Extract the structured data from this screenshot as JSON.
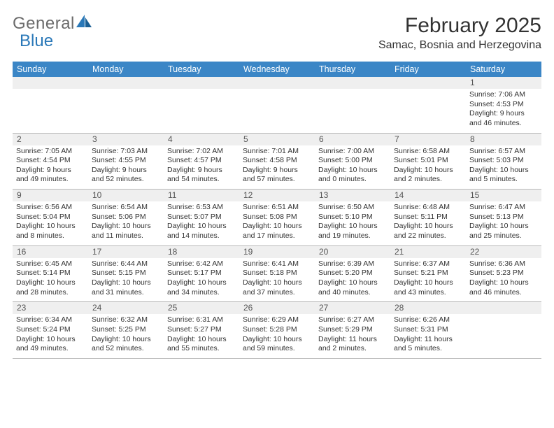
{
  "logo": {
    "word1": "General",
    "word2": "Blue"
  },
  "title": "February 2025",
  "location": "Samac, Bosnia and Herzegovina",
  "colors": {
    "header_bar": "#3b86c6",
    "header_text": "#ffffff",
    "stripe_bg": "#efefef",
    "body_text": "#333333",
    "logo_gray": "#6b6b6b",
    "logo_blue": "#2a78b8"
  },
  "days_of_week": [
    "Sunday",
    "Monday",
    "Tuesday",
    "Wednesday",
    "Thursday",
    "Friday",
    "Saturday"
  ],
  "weeks": [
    {
      "nums": [
        "",
        "",
        "",
        "",
        "",
        "",
        "1"
      ],
      "cells": [
        null,
        null,
        null,
        null,
        null,
        null,
        {
          "sunrise": "Sunrise: 7:06 AM",
          "sunset": "Sunset: 4:53 PM",
          "day1": "Daylight: 9 hours",
          "day2": "and 46 minutes."
        }
      ]
    },
    {
      "nums": [
        "2",
        "3",
        "4",
        "5",
        "6",
        "7",
        "8"
      ],
      "cells": [
        {
          "sunrise": "Sunrise: 7:05 AM",
          "sunset": "Sunset: 4:54 PM",
          "day1": "Daylight: 9 hours",
          "day2": "and 49 minutes."
        },
        {
          "sunrise": "Sunrise: 7:03 AM",
          "sunset": "Sunset: 4:55 PM",
          "day1": "Daylight: 9 hours",
          "day2": "and 52 minutes."
        },
        {
          "sunrise": "Sunrise: 7:02 AM",
          "sunset": "Sunset: 4:57 PM",
          "day1": "Daylight: 9 hours",
          "day2": "and 54 minutes."
        },
        {
          "sunrise": "Sunrise: 7:01 AM",
          "sunset": "Sunset: 4:58 PM",
          "day1": "Daylight: 9 hours",
          "day2": "and 57 minutes."
        },
        {
          "sunrise": "Sunrise: 7:00 AM",
          "sunset": "Sunset: 5:00 PM",
          "day1": "Daylight: 10 hours",
          "day2": "and 0 minutes."
        },
        {
          "sunrise": "Sunrise: 6:58 AM",
          "sunset": "Sunset: 5:01 PM",
          "day1": "Daylight: 10 hours",
          "day2": "and 2 minutes."
        },
        {
          "sunrise": "Sunrise: 6:57 AM",
          "sunset": "Sunset: 5:03 PM",
          "day1": "Daylight: 10 hours",
          "day2": "and 5 minutes."
        }
      ]
    },
    {
      "nums": [
        "9",
        "10",
        "11",
        "12",
        "13",
        "14",
        "15"
      ],
      "cells": [
        {
          "sunrise": "Sunrise: 6:56 AM",
          "sunset": "Sunset: 5:04 PM",
          "day1": "Daylight: 10 hours",
          "day2": "and 8 minutes."
        },
        {
          "sunrise": "Sunrise: 6:54 AM",
          "sunset": "Sunset: 5:06 PM",
          "day1": "Daylight: 10 hours",
          "day2": "and 11 minutes."
        },
        {
          "sunrise": "Sunrise: 6:53 AM",
          "sunset": "Sunset: 5:07 PM",
          "day1": "Daylight: 10 hours",
          "day2": "and 14 minutes."
        },
        {
          "sunrise": "Sunrise: 6:51 AM",
          "sunset": "Sunset: 5:08 PM",
          "day1": "Daylight: 10 hours",
          "day2": "and 17 minutes."
        },
        {
          "sunrise": "Sunrise: 6:50 AM",
          "sunset": "Sunset: 5:10 PM",
          "day1": "Daylight: 10 hours",
          "day2": "and 19 minutes."
        },
        {
          "sunrise": "Sunrise: 6:48 AM",
          "sunset": "Sunset: 5:11 PM",
          "day1": "Daylight: 10 hours",
          "day2": "and 22 minutes."
        },
        {
          "sunrise": "Sunrise: 6:47 AM",
          "sunset": "Sunset: 5:13 PM",
          "day1": "Daylight: 10 hours",
          "day2": "and 25 minutes."
        }
      ]
    },
    {
      "nums": [
        "16",
        "17",
        "18",
        "19",
        "20",
        "21",
        "22"
      ],
      "cells": [
        {
          "sunrise": "Sunrise: 6:45 AM",
          "sunset": "Sunset: 5:14 PM",
          "day1": "Daylight: 10 hours",
          "day2": "and 28 minutes."
        },
        {
          "sunrise": "Sunrise: 6:44 AM",
          "sunset": "Sunset: 5:15 PM",
          "day1": "Daylight: 10 hours",
          "day2": "and 31 minutes."
        },
        {
          "sunrise": "Sunrise: 6:42 AM",
          "sunset": "Sunset: 5:17 PM",
          "day1": "Daylight: 10 hours",
          "day2": "and 34 minutes."
        },
        {
          "sunrise": "Sunrise: 6:41 AM",
          "sunset": "Sunset: 5:18 PM",
          "day1": "Daylight: 10 hours",
          "day2": "and 37 minutes."
        },
        {
          "sunrise": "Sunrise: 6:39 AM",
          "sunset": "Sunset: 5:20 PM",
          "day1": "Daylight: 10 hours",
          "day2": "and 40 minutes."
        },
        {
          "sunrise": "Sunrise: 6:37 AM",
          "sunset": "Sunset: 5:21 PM",
          "day1": "Daylight: 10 hours",
          "day2": "and 43 minutes."
        },
        {
          "sunrise": "Sunrise: 6:36 AM",
          "sunset": "Sunset: 5:23 PM",
          "day1": "Daylight: 10 hours",
          "day2": "and 46 minutes."
        }
      ]
    },
    {
      "nums": [
        "23",
        "24",
        "25",
        "26",
        "27",
        "28",
        ""
      ],
      "cells": [
        {
          "sunrise": "Sunrise: 6:34 AM",
          "sunset": "Sunset: 5:24 PM",
          "day1": "Daylight: 10 hours",
          "day2": "and 49 minutes."
        },
        {
          "sunrise": "Sunrise: 6:32 AM",
          "sunset": "Sunset: 5:25 PM",
          "day1": "Daylight: 10 hours",
          "day2": "and 52 minutes."
        },
        {
          "sunrise": "Sunrise: 6:31 AM",
          "sunset": "Sunset: 5:27 PM",
          "day1": "Daylight: 10 hours",
          "day2": "and 55 minutes."
        },
        {
          "sunrise": "Sunrise: 6:29 AM",
          "sunset": "Sunset: 5:28 PM",
          "day1": "Daylight: 10 hours",
          "day2": "and 59 minutes."
        },
        {
          "sunrise": "Sunrise: 6:27 AM",
          "sunset": "Sunset: 5:29 PM",
          "day1": "Daylight: 11 hours",
          "day2": "and 2 minutes."
        },
        {
          "sunrise": "Sunrise: 6:26 AM",
          "sunset": "Sunset: 5:31 PM",
          "day1": "Daylight: 11 hours",
          "day2": "and 5 minutes."
        },
        null
      ]
    }
  ]
}
